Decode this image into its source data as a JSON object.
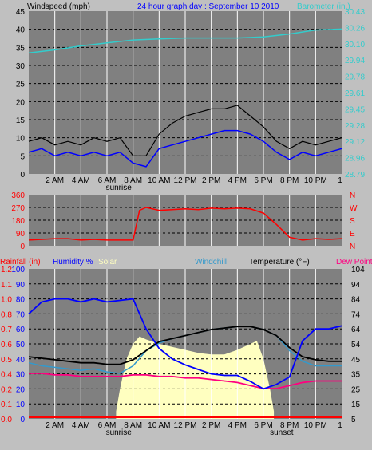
{
  "colors": {
    "background": "#c0c0c0",
    "plot_background": "#808080",
    "grid": "#000000",
    "wind_avg": "#0000ff",
    "wind_gust": "#000000",
    "wind_low": "#555555",
    "barometer": "#33cccc",
    "direction": "#ff0000",
    "rainfall": "#ff0000",
    "humidity": "#0000ff",
    "solar": "#ffffc0",
    "windchill": "#3399cc",
    "temperature": "#000000",
    "dewpoint": "#ff0080",
    "title": "#0000ff"
  },
  "x_tick_labels": [
    "2 AM",
    "4 AM",
    "6 AM",
    "8 AM",
    "10 AM",
    "12 PM",
    "2 PM",
    "4 PM",
    "6 PM",
    "8 PM",
    "10 PM"
  ],
  "x_tick_hours": [
    2,
    4,
    6,
    8,
    10,
    12,
    14,
    16,
    18,
    20,
    22
  ],
  "x_end_label": "1",
  "sunrise_label": "sunrise",
  "sunrise_hour": 6.9,
  "sunset_label": "sunset",
  "sunset_hour": 19.4,
  "panel1": {
    "title": "24 hour graph day : September 10 2010",
    "left_label": "Windspeed (mph)",
    "right_label": "Barometer (in.)",
    "left_ticks": [
      "0",
      "5",
      "10",
      "15",
      "20",
      "25",
      "30",
      "35",
      "40",
      "45"
    ],
    "right_ticks": [
      "28.79",
      "28.96",
      "29.12",
      "29.28",
      "29.45",
      "29.61",
      "29.78",
      "29.94",
      "30.10",
      "30.26",
      "30.43"
    ]
  },
  "panel2": {
    "left_ticks": [
      "0",
      "90",
      "180",
      "270",
      "360"
    ],
    "right_ticks": [
      "N",
      "E",
      "S",
      "W",
      "N"
    ]
  },
  "panel3": {
    "rain_label": "Rainfall (in)",
    "humidity_label": "Humidity %",
    "solar_label": "Solar",
    "windchill_label": "Windchill",
    "temperature_label": "Temperature (°F)",
    "dewpoint_label": "Dew Point",
    "left_ticks": [
      "0",
      "10",
      "20",
      "30",
      "40",
      "50",
      "60",
      "70",
      "80",
      "90",
      "100"
    ],
    "rain_ticks": [
      "0.0",
      "0.1",
      "0.2",
      "0.4",
      "0.5",
      "0.6",
      "0.7",
      "0.8",
      "1.0",
      "1.1",
      "1.2"
    ],
    "right_ticks": [
      "5",
      "15",
      "25",
      "35",
      "45",
      "54",
      "64",
      "74",
      "84",
      "94",
      "104"
    ]
  },
  "chart_data": [
    {
      "type": "line",
      "title": "24 hour graph day : September 10 2010",
      "ylabel": "Windspeed (mph)",
      "y2label": "Barometer (in.)",
      "ylim": [
        0,
        45
      ],
      "y2lim": [
        28.79,
        30.43
      ],
      "series": [
        {
          "name": "Windspeed (mph)",
          "x": [
            0,
            1,
            2,
            3,
            4,
            5,
            6,
            7,
            8,
            9,
            10,
            11,
            12,
            13,
            14,
            15,
            16,
            17,
            18,
            19,
            20,
            21,
            22,
            23,
            24
          ],
          "y": [
            6,
            7,
            5,
            6,
            5,
            6,
            5,
            6,
            3,
            2,
            7,
            8,
            9,
            10,
            11,
            12,
            12,
            11,
            9,
            6,
            4,
            6,
            5,
            6,
            7
          ]
        },
        {
          "name": "Gust",
          "x": [
            0,
            1,
            2,
            3,
            4,
            5,
            6,
            7,
            8,
            9,
            10,
            11,
            12,
            13,
            14,
            15,
            16,
            17,
            18,
            19,
            20,
            21,
            22,
            23,
            24
          ],
          "y": [
            9,
            10,
            8,
            9,
            8,
            10,
            9,
            10,
            5,
            5,
            11,
            14,
            16,
            17,
            18,
            18,
            19,
            16,
            13,
            9,
            7,
            9,
            8,
            9,
            10
          ]
        },
        {
          "name": "Barometer (in.)",
          "x": [
            0,
            2,
            4,
            6,
            8,
            10,
            12,
            14,
            16,
            18,
            20,
            22,
            24
          ],
          "y": [
            30.01,
            30.04,
            30.08,
            30.11,
            30.14,
            30.15,
            30.16,
            30.16,
            30.16,
            30.17,
            30.2,
            30.24,
            30.25
          ]
        }
      ]
    },
    {
      "type": "line",
      "ylabel": "Wind direction",
      "ylim": [
        0,
        360
      ],
      "series": [
        {
          "name": "Wind direction",
          "x": [
            0,
            1,
            2,
            3,
            4,
            5,
            6,
            7,
            8,
            8.5,
            9,
            10,
            11,
            12,
            13,
            14,
            15,
            16,
            17,
            18,
            19,
            20,
            21,
            22,
            23,
            24
          ],
          "y": [
            40,
            45,
            50,
            50,
            40,
            45,
            40,
            40,
            40,
            250,
            270,
            250,
            255,
            260,
            255,
            265,
            260,
            265,
            260,
            230,
            150,
            60,
            40,
            50,
            45,
            50
          ]
        }
      ]
    },
    {
      "type": "line",
      "ylabel": "Humidity %",
      "y2label": "Temperature (°F)",
      "ylim": [
        0,
        100
      ],
      "y2lim": [
        5,
        104
      ],
      "series": [
        {
          "name": "Humidity %",
          "x": [
            0,
            1,
            2,
            3,
            4,
            5,
            6,
            7,
            8,
            9,
            10,
            11,
            12,
            13,
            14,
            15,
            16,
            17,
            18,
            19,
            20,
            21,
            22,
            23,
            24
          ],
          "y": [
            70,
            78,
            80,
            80,
            78,
            80,
            78,
            79,
            80,
            60,
            47,
            40,
            36,
            33,
            30,
            29,
            29,
            25,
            20,
            23,
            28,
            52,
            60,
            60,
            62
          ]
        },
        {
          "name": "Temperature (°F)",
          "x": [
            0,
            1,
            2,
            3,
            4,
            5,
            6,
            7,
            8,
            9,
            10,
            11,
            12,
            13,
            14,
            15,
            16,
            17,
            18,
            19,
            20,
            21,
            22,
            23,
            24
          ],
          "y": [
            46,
            45,
            44,
            43,
            42,
            42,
            41,
            41,
            44,
            50,
            56,
            58,
            60,
            62,
            64,
            65,
            66,
            66,
            64,
            60,
            52,
            46,
            44,
            43,
            43
          ]
        },
        {
          "name": "Windchill",
          "x": [
            0,
            1,
            2,
            3,
            4,
            5,
            6,
            7,
            8,
            9,
            10,
            11,
            12,
            13,
            14,
            15,
            16,
            17,
            18,
            19,
            20,
            21,
            22,
            23,
            24
          ],
          "y": [
            42,
            40,
            39,
            38,
            37,
            38,
            36,
            35,
            40,
            50,
            55,
            58,
            60,
            62,
            64,
            65,
            66,
            66,
            64,
            60,
            50,
            43,
            40,
            40,
            40
          ]
        },
        {
          "name": "Dew Point",
          "x": [
            0,
            1,
            2,
            3,
            4,
            5,
            6,
            7,
            8,
            9,
            10,
            11,
            12,
            13,
            14,
            15,
            16,
            17,
            18,
            19,
            20,
            21,
            22,
            23,
            24
          ],
          "y": [
            35,
            35,
            34,
            34,
            33,
            33,
            33,
            33,
            34,
            34,
            33,
            33,
            32,
            32,
            31,
            30,
            29,
            27,
            25,
            25,
            27,
            29,
            30,
            30,
            30
          ]
        },
        {
          "name": "Solar",
          "x": [
            6.7,
            7,
            7.5,
            8,
            8.5,
            9,
            10,
            11,
            12,
            13,
            14,
            15,
            16,
            17,
            17.5,
            18,
            18.5,
            18.8
          ],
          "y": [
            5,
            20,
            40,
            50,
            55,
            53,
            50,
            48,
            46,
            44,
            43,
            43,
            46,
            50,
            52,
            40,
            20,
            5
          ]
        },
        {
          "name": "Rainfall (in)",
          "x": [
            0,
            24
          ],
          "y": [
            0,
            0
          ]
        }
      ]
    }
  ]
}
